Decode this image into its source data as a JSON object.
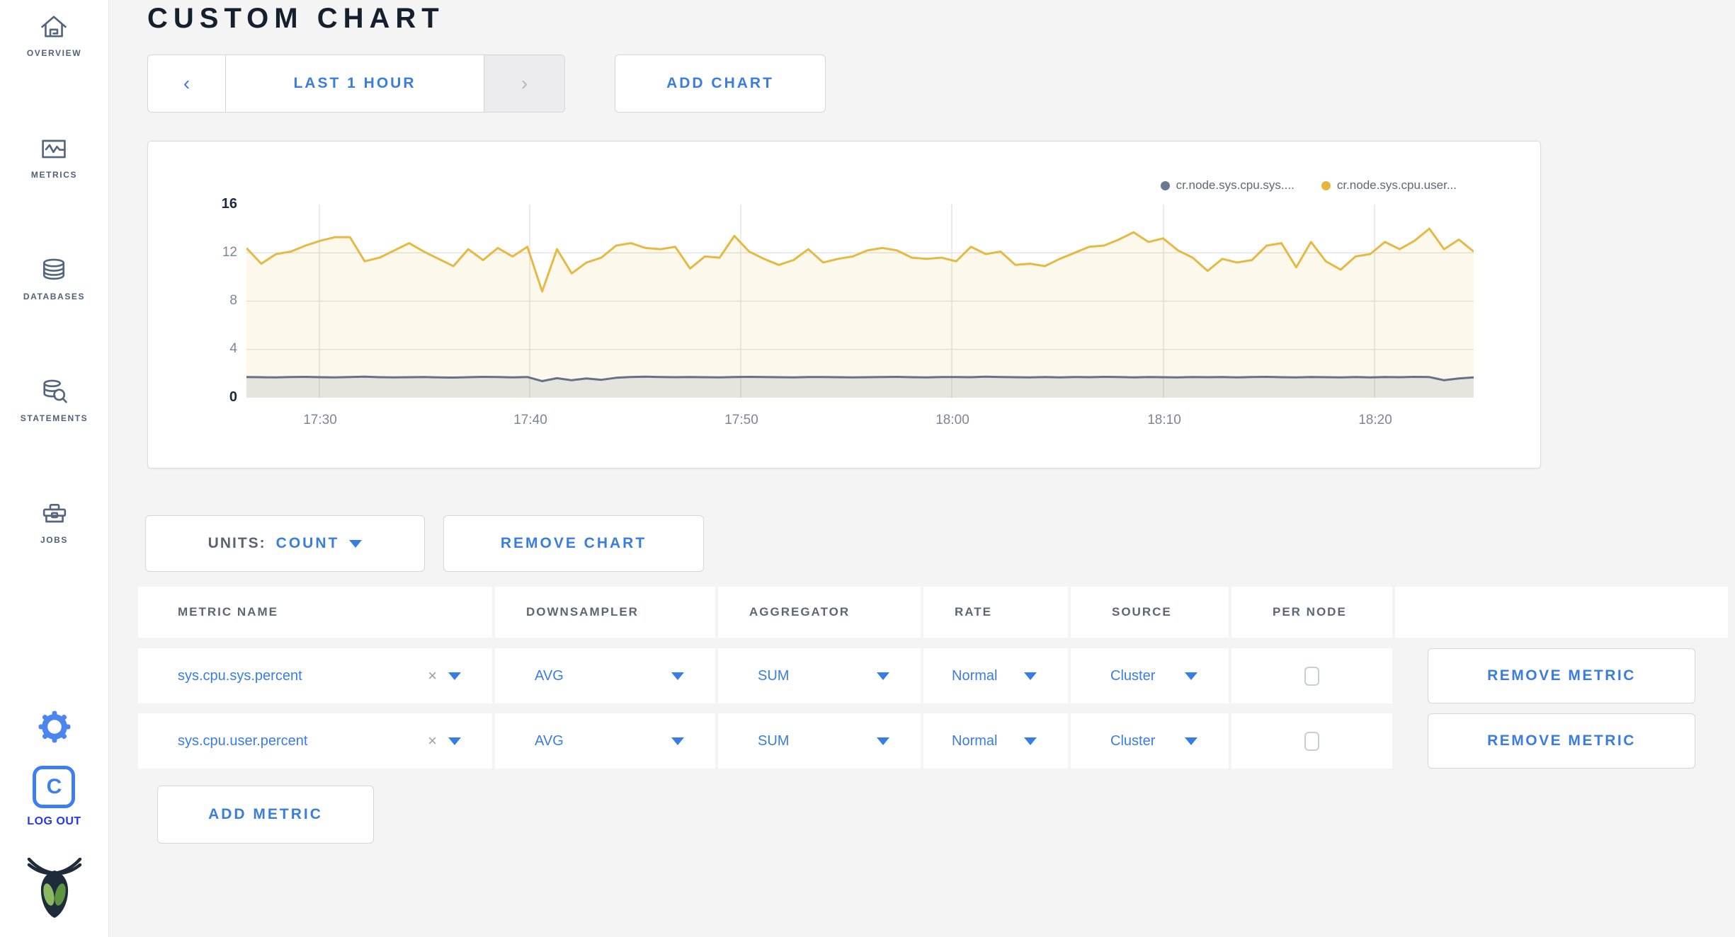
{
  "sidebar": {
    "items": [
      {
        "label": "OVERVIEW"
      },
      {
        "label": "METRICS"
      },
      {
        "label": "DATABASES"
      },
      {
        "label": "STATEMENTS"
      },
      {
        "label": "JOBS"
      }
    ],
    "logout_letter": "C",
    "logout_label": "LOG OUT"
  },
  "header": {
    "title": "CUSTOM CHART"
  },
  "toolbar": {
    "prev_arrow": "‹",
    "time_range": "LAST 1 HOUR",
    "next_arrow": "›",
    "add_chart": "ADD CHART"
  },
  "chart": {
    "legend": [
      {
        "label": "cr.node.sys.cpu.sys....",
        "color": "#6b7893"
      },
      {
        "label": "cr.node.sys.cpu.user...",
        "color": "#e5b63d"
      }
    ]
  },
  "chart_data": {
    "type": "line",
    "title": "",
    "xlabel": "",
    "ylabel": "",
    "ylim": [
      0,
      16
    ],
    "yticks": [
      0,
      4,
      8,
      12,
      16
    ],
    "ytick_labels": [
      "16",
      "12",
      "8",
      "4",
      "0"
    ],
    "x_tick_labels": [
      "17:30",
      "17:40",
      "17:50",
      "18:00",
      "18:10",
      "18:20"
    ],
    "grid": true,
    "legend_position": "top-right",
    "series": [
      {
        "name": "cr.node.sys.cpu.user...",
        "color": "#e6b945",
        "fill": "rgba(230,185,69,0.10)",
        "values": [
          12.4,
          11.1,
          11.9,
          12.1,
          12.6,
          13.0,
          13.3,
          13.3,
          11.3,
          11.6,
          12.2,
          12.8,
          12.1,
          11.5,
          10.9,
          12.3,
          11.4,
          12.4,
          11.7,
          12.5,
          8.8,
          12.3,
          10.3,
          11.2,
          11.6,
          12.6,
          12.8,
          12.4,
          12.3,
          12.5,
          10.7,
          11.7,
          11.6,
          13.4,
          12.1,
          11.5,
          11.0,
          11.4,
          12.3,
          11.2,
          11.5,
          11.7,
          12.2,
          12.4,
          12.2,
          11.6,
          11.5,
          11.6,
          11.3,
          12.5,
          11.9,
          12.1,
          11.0,
          11.1,
          10.9,
          11.5,
          12.0,
          12.5,
          12.6,
          13.1,
          13.7,
          12.9,
          13.2,
          12.2,
          11.6,
          10.5,
          11.5,
          11.2,
          11.4,
          12.6,
          12.8,
          10.8,
          12.9,
          11.3,
          10.6,
          11.7,
          11.9,
          12.9,
          12.3,
          13.0,
          14.0,
          12.3,
          13.1,
          12.1
        ]
      },
      {
        "name": "cr.node.sys.cpu.sys....",
        "color": "#667087",
        "fill": "rgba(102,112,135,0.14)",
        "values": [
          1.72,
          1.7,
          1.68,
          1.71,
          1.73,
          1.7,
          1.69,
          1.72,
          1.74,
          1.7,
          1.68,
          1.7,
          1.72,
          1.69,
          1.67,
          1.7,
          1.73,
          1.71,
          1.69,
          1.72,
          1.38,
          1.62,
          1.45,
          1.6,
          1.48,
          1.65,
          1.72,
          1.74,
          1.71,
          1.7,
          1.72,
          1.7,
          1.68,
          1.71,
          1.73,
          1.72,
          1.7,
          1.69,
          1.71,
          1.72,
          1.7,
          1.68,
          1.7,
          1.71,
          1.73,
          1.7,
          1.69,
          1.71,
          1.72,
          1.7,
          1.74,
          1.72,
          1.7,
          1.68,
          1.71,
          1.69,
          1.72,
          1.7,
          1.73,
          1.71,
          1.69,
          1.72,
          1.7,
          1.68,
          1.71,
          1.7,
          1.72,
          1.69,
          1.71,
          1.73,
          1.7,
          1.68,
          1.72,
          1.7,
          1.69,
          1.71,
          1.68,
          1.72,
          1.7,
          1.73,
          1.71,
          1.45,
          1.6,
          1.68
        ]
      }
    ]
  },
  "units_bar": {
    "units_label": "UNITS:",
    "units_value": "COUNT",
    "remove_chart": "REMOVE CHART"
  },
  "table": {
    "headers": [
      "METRIC NAME",
      "DOWNSAMPLER",
      "AGGREGATOR",
      "RATE",
      "SOURCE",
      "PER NODE"
    ],
    "rows": [
      {
        "metric": "sys.cpu.sys.percent",
        "clear": "×",
        "downsampler": "AVG",
        "aggregator": "SUM",
        "rate": "Normal",
        "source": "Cluster",
        "per_node_checked": false,
        "remove": "REMOVE METRIC"
      },
      {
        "metric": "sys.cpu.user.percent",
        "clear": "×",
        "downsampler": "AVG",
        "aggregator": "SUM",
        "rate": "Normal",
        "source": "Cluster",
        "per_node_checked": false,
        "remove": "REMOVE METRIC"
      }
    ]
  },
  "footer": {
    "add_metric": "ADD METRIC"
  }
}
